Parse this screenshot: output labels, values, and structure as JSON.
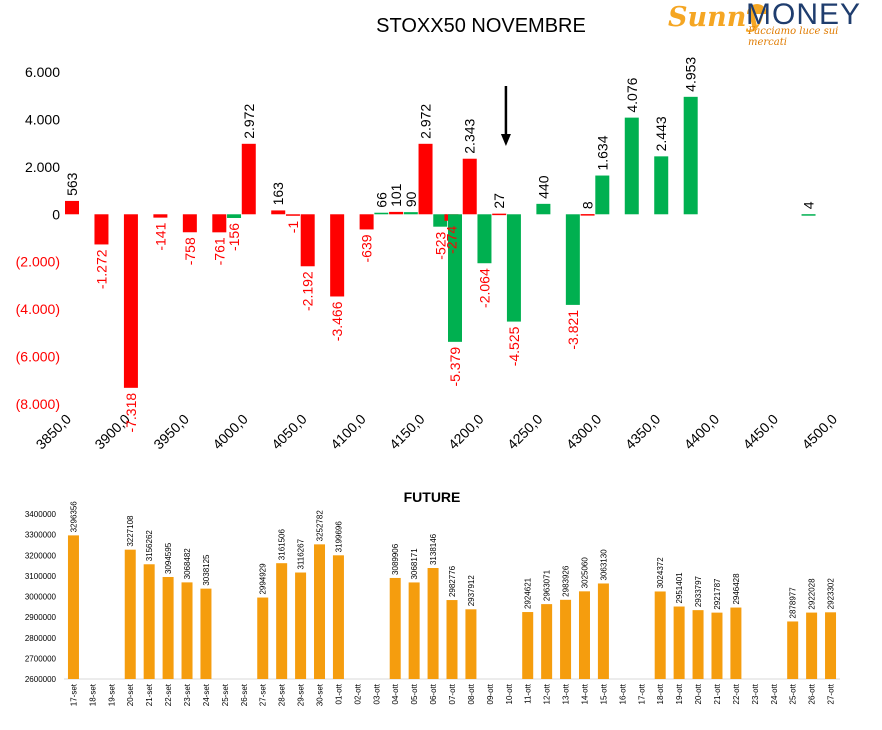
{
  "brand": {
    "name_part1": "Sunny",
    "name_part2": "MONEY",
    "tagline": "Facciamo luce sui mercati"
  },
  "colors": {
    "red": "#ff0000",
    "green": "#00b050",
    "orange": "#f59d0e",
    "positive_label": "#000000",
    "negative_label": "#ff0000",
    "arrow": "#000000"
  },
  "chart_data": [
    {
      "type": "bar",
      "title": "STOXX50 NOVEMBRE",
      "ylim": [
        -8000,
        6000
      ],
      "yticks": [
        "6.000",
        "4.000",
        "2.000",
        "0",
        "(2.000)",
        "(4.000)",
        "(6.000)",
        "(8.000)"
      ],
      "ytick_values": [
        6000,
        4000,
        2000,
        0,
        -2000,
        -4000,
        -6000,
        -8000
      ],
      "xlim": [
        3850,
        4500
      ],
      "xticks": [
        "3850,0",
        "3900,0",
        "3950,0",
        "4000,0",
        "4050,0",
        "4100,0",
        "4150,0",
        "4200,0",
        "4250,0",
        "4300,0",
        "4350,0",
        "4400,0",
        "4450,0",
        "4500,0"
      ],
      "xtick_values": [
        3850,
        3900,
        3950,
        4000,
        4050,
        4100,
        4150,
        4200,
        4250,
        4300,
        4350,
        4400,
        4450,
        4500
      ],
      "grid": false,
      "annotation": "arrow pointing down at 4225",
      "arrow_strike": 4225,
      "bars": [
        {
          "strike": 3850,
          "value": 563,
          "label": "563",
          "color": "red"
        },
        {
          "strike": 3875,
          "value": -1272,
          "label": "-1.272",
          "color": "red"
        },
        {
          "strike": 3900,
          "value": -7318,
          "label": "-7.318",
          "color": "red"
        },
        {
          "strike": 3925,
          "value": -141,
          "label": "-141",
          "color": "red"
        },
        {
          "strike": 3950,
          "value": -758,
          "label": "-758",
          "color": "red"
        },
        {
          "strike": 3975,
          "value": -761,
          "label": "-761",
          "color": "red"
        },
        {
          "strike": 3987.5,
          "value": -156,
          "label": "-156",
          "color": "green"
        },
        {
          "strike": 4000,
          "value": 2972,
          "label": "2.972",
          "color": "red"
        },
        {
          "strike": 4025,
          "value": 163,
          "label": "163",
          "color": "red"
        },
        {
          "strike": 4037.5,
          "value": -1,
          "label": "-1",
          "color": "red"
        },
        {
          "strike": 4050,
          "value": -2192,
          "label": "-2.192",
          "color": "red"
        },
        {
          "strike": 4075,
          "value": -3466,
          "label": "-3.466",
          "color": "red"
        },
        {
          "strike": 4100,
          "value": -639,
          "label": "-639",
          "color": "red"
        },
        {
          "strike": 4112.5,
          "value": 66,
          "label": "66",
          "color": "green"
        },
        {
          "strike": 4125,
          "value": 101,
          "label": "101",
          "color": "red"
        },
        {
          "strike": 4137.5,
          "value": 90,
          "label": "90",
          "color": "green"
        },
        {
          "strike": 4150,
          "value": 2972,
          "label": "2.972",
          "color": "red"
        },
        {
          "strike": 4162.5,
          "value": -523,
          "label": "-523",
          "color": "green"
        },
        {
          "strike": 4172,
          "value": -274,
          "label": "-274",
          "color": "red"
        },
        {
          "strike": 4175,
          "value": -5379,
          "label": "-5.379",
          "color": "green"
        },
        {
          "strike": 4187.5,
          "value": 2343,
          "label": "2.343",
          "color": "red"
        },
        {
          "strike": 4200,
          "value": -2064,
          "label": "-2.064",
          "color": "green"
        },
        {
          "strike": 4212.5,
          "value": 27,
          "label": "27",
          "color": "red"
        },
        {
          "strike": 4225,
          "value": -4525,
          "label": "-4.525",
          "color": "green"
        },
        {
          "strike": 4250,
          "value": 440,
          "label": "440",
          "color": "green"
        },
        {
          "strike": 4275,
          "value": -3821,
          "label": "-3.821",
          "color": "green"
        },
        {
          "strike": 4287.5,
          "value": 8,
          "label": "8",
          "color": "red"
        },
        {
          "strike": 4300,
          "value": 1634,
          "label": "1.634",
          "color": "green"
        },
        {
          "strike": 4325,
          "value": 4076,
          "label": "4.076",
          "color": "green"
        },
        {
          "strike": 4350,
          "value": 2443,
          "label": "2.443",
          "color": "green"
        },
        {
          "strike": 4375,
          "value": 4953,
          "label": "4.953",
          "color": "green"
        },
        {
          "strike": 4475,
          "value": 4,
          "label": "4",
          "color": "green"
        }
      ]
    },
    {
      "type": "bar",
      "title": "FUTURE",
      "ylim": [
        2600000,
        3400000
      ],
      "yticks": [
        "3400000",
        "3300000",
        "3200000",
        "3100000",
        "3000000",
        "2900000",
        "2800000",
        "2700000",
        "2600000"
      ],
      "ytick_values": [
        3400000,
        3300000,
        3200000,
        3100000,
        3000000,
        2900000,
        2800000,
        2700000,
        2600000
      ],
      "grid": false,
      "categories": [
        "17-set",
        "18-set",
        "19-set",
        "20-set",
        "21-set",
        "22-set",
        "23-set",
        "24-set",
        "25-set",
        "26-set",
        "27-set",
        "28-set",
        "29-set",
        "30-set",
        "01-ott",
        "02-ott",
        "03-ott",
        "04-ott",
        "05-ott",
        "06-ott",
        "07-ott",
        "08-ott",
        "09-ott",
        "10-ott",
        "11-ott",
        "12-ott",
        "13-ott",
        "14-ott",
        "15-ott",
        "16-ott",
        "17-ott",
        "18-ott",
        "19-ott",
        "20-ott",
        "21-ott",
        "22-ott",
        "23-ott",
        "24-ott",
        "25-ott",
        "26-ott",
        "27-ott"
      ],
      "values": [
        3296356,
        null,
        null,
        3227108,
        3156262,
        3094595,
        3068482,
        3038125,
        null,
        null,
        2994929,
        3161506,
        3116267,
        3252782,
        3199696,
        null,
        null,
        3089906,
        3068171,
        3138146,
        2982776,
        2937912,
        null,
        null,
        2924621,
        2963071,
        2983926,
        3025060,
        3063130,
        null,
        null,
        3024372,
        2951401,
        2933797,
        2921787,
        2946428,
        null,
        null,
        2878977,
        2922028,
        2923302
      ],
      "labels": [
        "3296356",
        "",
        "",
        "3227108",
        "3156262",
        "3094595",
        "3068482",
        "3038125",
        "",
        "",
        "2994929",
        "3161506",
        "3116267",
        "3252782",
        "3199696",
        "",
        "",
        "3089906",
        "3068171",
        "3138146",
        "2982776",
        "2937912",
        "",
        "",
        "2924621",
        "2963071",
        "2983926",
        "3025060",
        "3063130",
        "",
        "",
        "3024372",
        "2951401",
        "2933797",
        "2921787",
        "2946428",
        "",
        "",
        "2878977",
        "2922028",
        "2923302"
      ]
    }
  ]
}
